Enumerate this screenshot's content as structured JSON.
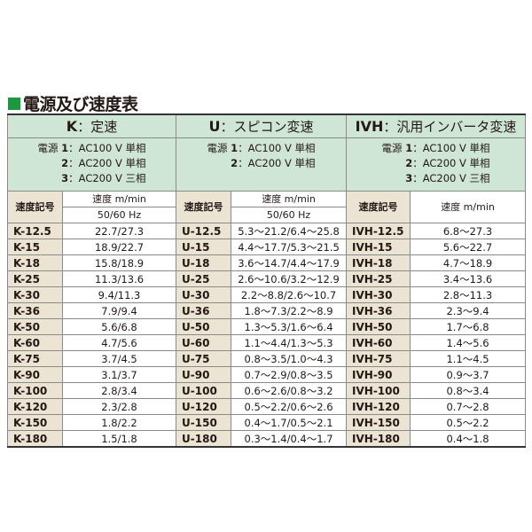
{
  "title": "電源及び速度表",
  "colors": {
    "accent": "#1a9a3c",
    "header_bg": "#cfe6d4",
    "label_bg": "#ebe4d2"
  },
  "sections": [
    {
      "code": "K",
      "name": "：定速",
      "power": [
        {
          "n": "1",
          "v": "：AC100 V 単相"
        },
        {
          "n": "2",
          "v": "：AC200 V 単相"
        },
        {
          "n": "3",
          "v": "：AC200 V 三相"
        }
      ],
      "power_label": "電源",
      "col_label": "速度記号",
      "speed_label": "速度 m/min",
      "freq": "50/60 Hz",
      "rows": [
        [
          "K-12.5",
          "22.7/27.3"
        ],
        [
          "K-15",
          "18.9/22.7"
        ],
        [
          "K-18",
          "15.8/18.9"
        ],
        [
          "K-25",
          "11.3/13.6"
        ],
        [
          "K-30",
          "9.4/11.3"
        ],
        [
          "K-36",
          "7.9/9.4"
        ],
        [
          "K-50",
          "5.6/6.8"
        ],
        [
          "K-60",
          "4.7/5.6"
        ],
        [
          "K-75",
          "3.7/4.5"
        ],
        [
          "K-90",
          "3.1/3.7"
        ],
        [
          "K-100",
          "2.8/3.4"
        ],
        [
          "K-120",
          "2.3/2.8"
        ],
        [
          "K-150",
          "1.8/2.2"
        ],
        [
          "K-180",
          "1.5/1.8"
        ]
      ]
    },
    {
      "code": "U",
      "name": "：スピコン変速",
      "power": [
        {
          "n": "1",
          "v": "：AC100 V 単相"
        },
        {
          "n": "2",
          "v": "：AC200 V 単相"
        }
      ],
      "power_label": "電源",
      "col_label": "速度記号",
      "speed_label": "速度 m/min",
      "freq": "50/60 Hz",
      "rows": [
        [
          "U-12.5",
          "5.3〜21.2/6.4〜25.8"
        ],
        [
          "U-15",
          "4.4〜17.7/5.3〜21.5"
        ],
        [
          "U-18",
          "3.6〜14.7/4.4〜17.9"
        ],
        [
          "U-25",
          "2.6〜10.6/3.2〜12.9"
        ],
        [
          "U-30",
          "2.2〜8.8/2.6〜10.7"
        ],
        [
          "U-36",
          "1.8〜7.3/2.2〜8.9"
        ],
        [
          "U-50",
          "1.3〜5.3/1.6〜6.4"
        ],
        [
          "U-60",
          "1.1〜4.4/1.3〜5.3"
        ],
        [
          "U-75",
          "0.8〜3.5/1.0〜4.3"
        ],
        [
          "U-90",
          "0.7〜2.9/0.8〜3.5"
        ],
        [
          "U-100",
          "0.6〜2.6/0.8〜3.2"
        ],
        [
          "U-120",
          "0.5〜2.2/0.6〜2.6"
        ],
        [
          "U-150",
          "0.4〜1.7/0.5〜2.1"
        ],
        [
          "U-180",
          "0.3〜1.4/0.4〜1.7"
        ]
      ]
    },
    {
      "code": "IVH",
      "name": "：汎用インバータ変速",
      "power": [
        {
          "n": "1",
          "v": "：AC100 V 単相"
        },
        {
          "n": "2",
          "v": "：AC200 V 単相"
        },
        {
          "n": "3",
          "v": "：AC200 V 三相"
        }
      ],
      "power_label": "電源",
      "col_label": "速度記号",
      "speed_label": "速度 m/min",
      "rows": [
        [
          "IVH-12.5",
          "6.8〜27.3"
        ],
        [
          "IVH-15",
          "5.6〜22.7"
        ],
        [
          "IVH-18",
          "4.7〜18.9"
        ],
        [
          "IVH-25",
          "3.4〜13.6"
        ],
        [
          "IVH-30",
          "2.8〜11.3"
        ],
        [
          "IVH-36",
          "2.3〜9.4"
        ],
        [
          "IVH-50",
          "1.7〜6.8"
        ],
        [
          "IVH-60",
          "1.4〜5.6"
        ],
        [
          "IVH-75",
          "1.1〜4.5"
        ],
        [
          "IVH-90",
          "0.9〜3.7"
        ],
        [
          "IVH-100",
          "0.8〜3.4"
        ],
        [
          "IVH-120",
          "0.7〜2.8"
        ],
        [
          "IVH-150",
          "0.5〜2.2"
        ],
        [
          "IVH-180",
          "0.4〜1.8"
        ]
      ]
    }
  ]
}
